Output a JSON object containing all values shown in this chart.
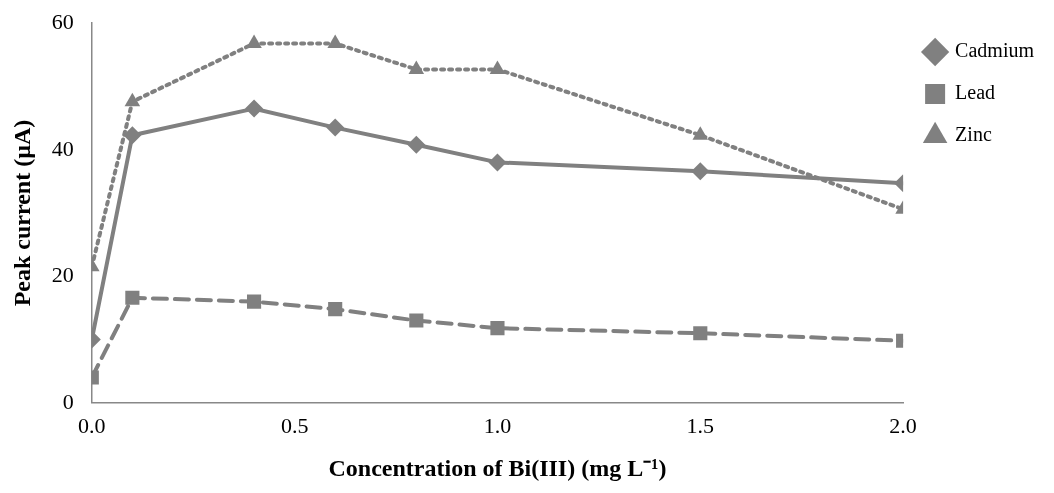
{
  "chart_data": {
    "type": "line",
    "xlabel": "Concentration of Bi(III) (mg L⁻¹)",
    "ylabel": "Peak current (µA)",
    "x": [
      0,
      0.1,
      0.4,
      0.6,
      0.8,
      1.0,
      1.5,
      2.0
    ],
    "xlim": [
      0,
      2
    ],
    "xticks": [
      {
        "value": 0,
        "label": "0.0"
      },
      {
        "value": 0.5,
        "label": "0.5"
      },
      {
        "value": 1,
        "label": "1.0"
      },
      {
        "value": 1.5,
        "label": "1.5"
      },
      {
        "value": 2,
        "label": "2.0"
      }
    ],
    "ylim": [
      0,
      60
    ],
    "yticks": [
      0,
      20,
      40,
      60
    ],
    "grid": false,
    "legend": "top right",
    "series": [
      {
        "name": "Cadmium",
        "color": "#808080",
        "marker": "diamond",
        "line_style": "solid",
        "values": [
          10,
          42.3,
          46.5,
          43.5,
          40.8,
          38,
          36.6,
          34.7
        ]
      },
      {
        "name": "Lead",
        "color": "#808080",
        "marker": "square",
        "line_style": "dashed",
        "values": [
          4,
          16.6,
          16,
          14.8,
          13,
          11.8,
          11,
          9.8
        ]
      },
      {
        "name": "Zinc",
        "color": "#808080",
        "marker": "triangle",
        "line_style": "dotted",
        "values": [
          21.5,
          47.6,
          56.8,
          56.8,
          52.7,
          52.7,
          42.3,
          30.6
        ]
      }
    ]
  }
}
